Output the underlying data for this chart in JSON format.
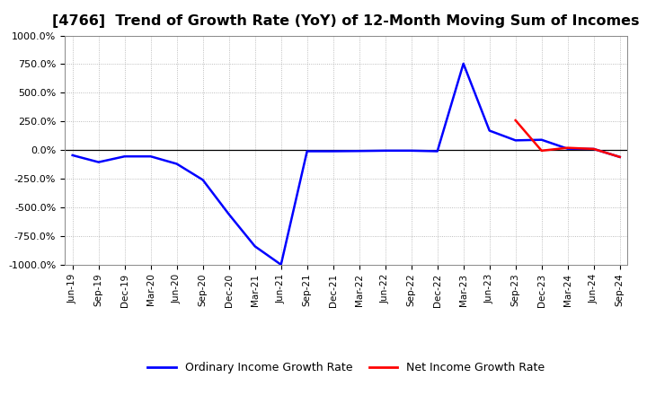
{
  "title": "[4766]  Trend of Growth Rate (YoY) of 12-Month Moving Sum of Incomes",
  "title_fontsize": 11.5,
  "background_color": "#ffffff",
  "grid_color": "#aaaaaa",
  "ylim": [
    -1000,
    1000
  ],
  "yticks": [
    -1000,
    -750,
    -500,
    -250,
    0,
    250,
    500,
    750,
    1000
  ],
  "ordinary_color": "#0000ff",
  "net_color": "#ff0000",
  "legend_labels": [
    "Ordinary Income Growth Rate",
    "Net Income Growth Rate"
  ],
  "xtick_labels": [
    "Jun-19",
    "Sep-19",
    "Dec-19",
    "Mar-20",
    "Jun-20",
    "Sep-20",
    "Dec-20",
    "Mar-21",
    "Jun-21",
    "Sep-21",
    "Dec-21",
    "Mar-22",
    "Jun-22",
    "Sep-22",
    "Dec-22",
    "Mar-23",
    "Jun-23",
    "Sep-23",
    "Dec-23",
    "Mar-24",
    "Jun-24",
    "Sep-24"
  ],
  "ordinary_x": [
    0,
    1,
    2,
    3,
    4,
    5,
    6,
    7,
    8,
    9,
    10,
    11,
    12,
    13,
    14,
    15,
    16,
    17,
    18,
    19,
    20,
    21
  ],
  "ordinary_y": [
    -45,
    -105,
    -55,
    -55,
    -120,
    -260,
    -560,
    -840,
    -1000,
    -10,
    -10,
    -8,
    -5,
    -5,
    -10,
    755,
    170,
    85,
    90,
    12,
    10,
    -60
  ],
  "net_x": [
    17,
    18,
    19,
    20,
    21
  ],
  "net_y": [
    260,
    -5,
    20,
    10,
    -60
  ]
}
